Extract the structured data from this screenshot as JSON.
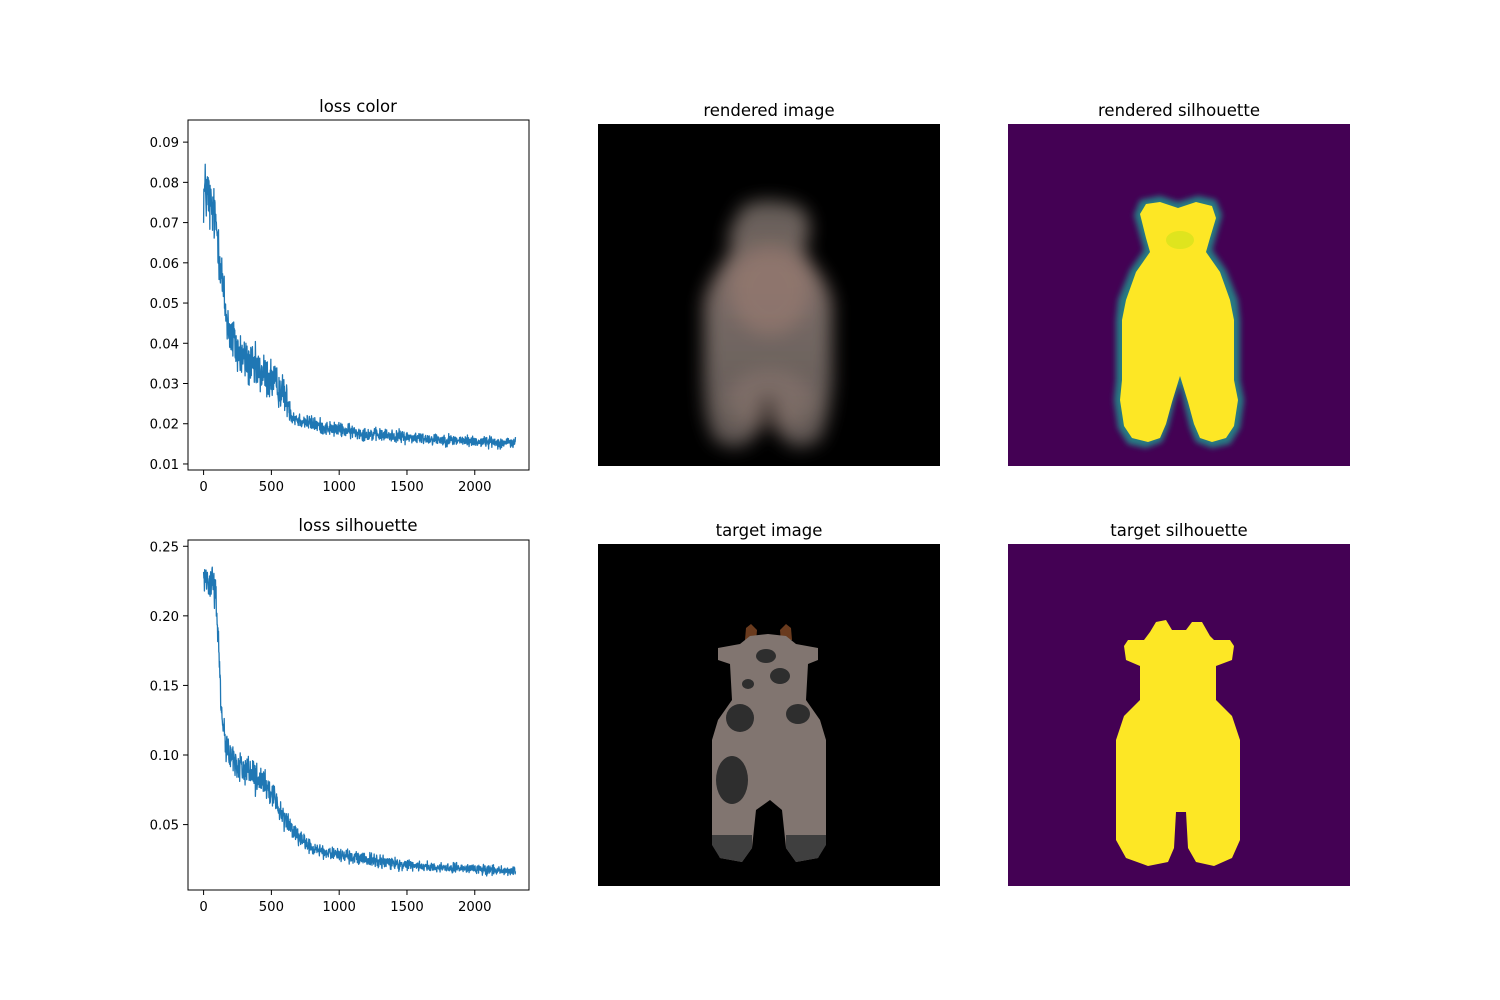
{
  "chart_data": [
    {
      "type": "line",
      "title": "loss color",
      "xlabel": "",
      "ylabel": "",
      "xlim": [
        -115,
        2400
      ],
      "ylim": [
        0.0085,
        0.0955
      ],
      "xticks": [
        0,
        500,
        1000,
        1500,
        2000
      ],
      "yticks": [
        0.01,
        0.02,
        0.03,
        0.04,
        0.05,
        0.06,
        0.07,
        0.08,
        0.09
      ],
      "ytick_labels": [
        "0.01",
        "0.02",
        "0.03",
        "0.04",
        "0.05",
        "0.06",
        "0.07",
        "0.08",
        "0.09"
      ],
      "grid": false,
      "color": "#1f77b4",
      "series": [
        {
          "x": [
            0,
            25,
            50,
            75,
            100,
            130,
            160,
            200,
            250,
            300,
            350,
            400,
            450,
            500,
            550,
            600,
            625,
            650,
            700,
            800,
            900,
            1000,
            1100,
            1200,
            1300,
            1400,
            1500,
            1600,
            1700,
            1800,
            1900,
            2000,
            2100,
            2200,
            2300
          ],
          "y": [
            0.077,
            0.078,
            0.074,
            0.072,
            0.068,
            0.058,
            0.048,
            0.042,
            0.038,
            0.036,
            0.034,
            0.033,
            0.032,
            0.031,
            0.029,
            0.027,
            0.025,
            0.022,
            0.021,
            0.02,
            0.019,
            0.0185,
            0.018,
            0.0175,
            0.0172,
            0.017,
            0.0167,
            0.0164,
            0.0162,
            0.016,
            0.0158,
            0.0156,
            0.0155,
            0.0153,
            0.0152
          ],
          "noise": [
            0.007,
            0.008,
            0.007,
            0.006,
            0.006,
            0.006,
            0.006,
            0.006,
            0.0055,
            0.005,
            0.005,
            0.005,
            0.005,
            0.005,
            0.004,
            0.004,
            0.003,
            0.002,
            0.0018,
            0.0017,
            0.0016,
            0.0016,
            0.0015,
            0.0015,
            0.0014,
            0.0014,
            0.0014,
            0.0013,
            0.0013,
            0.0013,
            0.0012,
            0.0012,
            0.0012,
            0.0012,
            0.0012
          ]
        }
      ]
    },
    {
      "type": "line",
      "title": "loss silhouette",
      "xlabel": "",
      "ylabel": "",
      "xlim": [
        -115,
        2400
      ],
      "ylim": [
        0.003,
        0.2545
      ],
      "xticks": [
        0,
        500,
        1000,
        1500,
        2000
      ],
      "yticks": [
        0.05,
        0.1,
        0.15,
        0.2,
        0.25
      ],
      "ytick_labels": [
        "0.05",
        "0.10",
        "0.15",
        "0.20",
        "0.25"
      ],
      "grid": false,
      "color": "#1f77b4",
      "series": [
        {
          "x": [
            0,
            30,
            60,
            90,
            110,
            130,
            160,
            200,
            250,
            300,
            400,
            500,
            600,
            700,
            800,
            900,
            1000,
            1200,
            1400,
            1600,
            1800,
            2000,
            2200,
            2300
          ],
          "y": [
            0.228,
            0.228,
            0.224,
            0.215,
            0.18,
            0.135,
            0.11,
            0.098,
            0.093,
            0.09,
            0.082,
            0.072,
            0.055,
            0.04,
            0.033,
            0.03,
            0.028,
            0.025,
            0.022,
            0.02,
            0.019,
            0.018,
            0.017,
            0.017
          ],
          "noise": [
            0.01,
            0.01,
            0.012,
            0.012,
            0.012,
            0.01,
            0.01,
            0.01,
            0.01,
            0.01,
            0.01,
            0.009,
            0.007,
            0.005,
            0.004,
            0.004,
            0.004,
            0.004,
            0.004,
            0.003,
            0.003,
            0.003,
            0.003,
            0.003
          ]
        }
      ]
    }
  ],
  "images": {
    "rendered_image": {
      "title": "rendered image"
    },
    "rendered_silhouette": {
      "title": "rendered silhouette"
    },
    "target_image": {
      "title": "target image"
    },
    "target_silhouette": {
      "title": "target silhouette"
    }
  },
  "colors": {
    "line": "#1f77b4",
    "viridis_purple": "#440154",
    "viridis_yellow": "#fde725",
    "viridis_teal": "#21918c",
    "cow_body": "#817570",
    "cow_spot": "#2e2e2e",
    "cow_hoof": "#3f3f3f",
    "cow_horn": "#6a3b1e",
    "image_background": "#000000"
  }
}
